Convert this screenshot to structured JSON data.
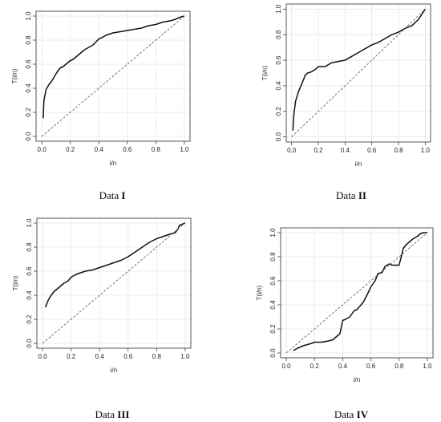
{
  "chart_data": [
    {
      "type": "line",
      "caption": {
        "prefix": "Data ",
        "roman": "I"
      },
      "xlabel": "i/n",
      "ylabel": "T(i/n)",
      "xlim": [
        0,
        1
      ],
      "ylim": [
        0,
        1
      ],
      "xticks": [
        "0.0",
        "0.2",
        "0.4",
        "0.6",
        "0.8",
        "1.0"
      ],
      "yticks": [
        "0.0",
        "0.2",
        "0.4",
        "0.6",
        "0.8",
        "1.0"
      ],
      "grid": true,
      "series": [
        {
          "style": "solid",
          "x": [
            0.01,
            0.015,
            0.02,
            0.03,
            0.05,
            0.07,
            0.09,
            0.11,
            0.13,
            0.15,
            0.18,
            0.2,
            0.22,
            0.25,
            0.28,
            0.3,
            0.33,
            0.36,
            0.4,
            0.42,
            0.45,
            0.5,
            0.55,
            0.6,
            0.65,
            0.7,
            0.75,
            0.8,
            0.85,
            0.9,
            0.93,
            0.95,
            0.97,
            1.0
          ],
          "y": [
            0.15,
            0.3,
            0.33,
            0.39,
            0.43,
            0.46,
            0.5,
            0.54,
            0.57,
            0.58,
            0.61,
            0.63,
            0.64,
            0.67,
            0.7,
            0.72,
            0.74,
            0.76,
            0.81,
            0.82,
            0.84,
            0.86,
            0.87,
            0.88,
            0.89,
            0.9,
            0.92,
            0.93,
            0.95,
            0.96,
            0.97,
            0.98,
            0.99,
            1.0
          ]
        },
        {
          "style": "dashed",
          "x": [
            0,
            1
          ],
          "y": [
            0,
            1
          ]
        }
      ]
    },
    {
      "type": "line",
      "caption": {
        "prefix": "Data ",
        "roman": "II"
      },
      "xlabel": "i/n",
      "ylabel": "T(i/n)",
      "xlim": [
        0,
        1
      ],
      "ylim": [
        0,
        1
      ],
      "xticks": [
        "0.0",
        "0.2",
        "0.4",
        "0.6",
        "0.8",
        "1.0"
      ],
      "yticks": [
        "0.0",
        "0.2",
        "0.4",
        "0.6",
        "0.8",
        "1.0"
      ],
      "grid": true,
      "series": [
        {
          "style": "solid",
          "x": [
            0.01,
            0.015,
            0.02,
            0.03,
            0.05,
            0.07,
            0.09,
            0.1,
            0.12,
            0.15,
            0.18,
            0.2,
            0.25,
            0.3,
            0.35,
            0.4,
            0.45,
            0.5,
            0.55,
            0.6,
            0.65,
            0.7,
            0.75,
            0.8,
            0.85,
            0.9,
            0.95,
            1.0
          ],
          "y": [
            0.05,
            0.15,
            0.2,
            0.28,
            0.35,
            0.4,
            0.45,
            0.48,
            0.5,
            0.51,
            0.53,
            0.55,
            0.55,
            0.58,
            0.59,
            0.6,
            0.63,
            0.66,
            0.69,
            0.72,
            0.74,
            0.77,
            0.8,
            0.82,
            0.85,
            0.87,
            0.92,
            1.0
          ]
        },
        {
          "style": "dashed",
          "x": [
            0,
            1
          ],
          "y": [
            0,
            1
          ]
        }
      ]
    },
    {
      "type": "line",
      "caption": {
        "prefix": "Data ",
        "roman": "III"
      },
      "xlabel": "i/n",
      "ylabel": "T(i/n)",
      "xlim": [
        0,
        1
      ],
      "ylim": [
        0,
        1
      ],
      "xticks": [
        "0.0",
        "0.2",
        "0.4",
        "0.6",
        "0.8",
        "1.0"
      ],
      "yticks": [
        "0.0",
        "0.2",
        "0.4",
        "0.6",
        "0.8",
        "1.0"
      ],
      "grid": true,
      "series": [
        {
          "style": "solid",
          "x": [
            0.02,
            0.04,
            0.06,
            0.08,
            0.1,
            0.13,
            0.15,
            0.18,
            0.2,
            0.23,
            0.25,
            0.3,
            0.35,
            0.4,
            0.45,
            0.5,
            0.55,
            0.6,
            0.65,
            0.7,
            0.75,
            0.8,
            0.85,
            0.9,
            0.93,
            0.95,
            0.96,
            0.98,
            1.0
          ],
          "y": [
            0.3,
            0.36,
            0.4,
            0.43,
            0.45,
            0.48,
            0.5,
            0.52,
            0.55,
            0.57,
            0.58,
            0.6,
            0.61,
            0.63,
            0.65,
            0.67,
            0.69,
            0.72,
            0.76,
            0.8,
            0.84,
            0.87,
            0.89,
            0.91,
            0.92,
            0.95,
            0.98,
            0.99,
            1.0
          ]
        },
        {
          "style": "dashed",
          "x": [
            0,
            1
          ],
          "y": [
            0,
            1
          ]
        }
      ]
    },
    {
      "type": "line",
      "caption": {
        "prefix": "Data ",
        "roman": "IV"
      },
      "xlabel": "i/n",
      "ylabel": "T(i/n)",
      "xlim": [
        0,
        1
      ],
      "ylim": [
        0,
        1
      ],
      "xticks": [
        "0.0",
        "0.2",
        "0.4",
        "0.6",
        "0.8",
        "1.0"
      ],
      "yticks": [
        "0.0",
        "0.2",
        "0.4",
        "0.6",
        "0.8",
        "1.0"
      ],
      "grid": true,
      "series": [
        {
          "style": "solid",
          "x": [
            0.05,
            0.08,
            0.1,
            0.12,
            0.15,
            0.18,
            0.2,
            0.25,
            0.3,
            0.33,
            0.35,
            0.38,
            0.4,
            0.42,
            0.45,
            0.48,
            0.5,
            0.53,
            0.55,
            0.58,
            0.6,
            0.63,
            0.65,
            0.68,
            0.7,
            0.73,
            0.75,
            0.8,
            0.83,
            0.85,
            0.88,
            0.9,
            0.93,
            0.95,
            0.97,
            1.0
          ],
          "y": [
            0.02,
            0.04,
            0.05,
            0.06,
            0.07,
            0.08,
            0.09,
            0.09,
            0.1,
            0.11,
            0.13,
            0.16,
            0.27,
            0.28,
            0.3,
            0.35,
            0.36,
            0.4,
            0.43,
            0.5,
            0.55,
            0.6,
            0.66,
            0.67,
            0.72,
            0.74,
            0.73,
            0.73,
            0.87,
            0.9,
            0.93,
            0.95,
            0.97,
            0.99,
            1.0,
            1.0
          ]
        },
        {
          "style": "dashed",
          "x": [
            0,
            1
          ],
          "y": [
            0,
            1
          ]
        }
      ]
    }
  ]
}
